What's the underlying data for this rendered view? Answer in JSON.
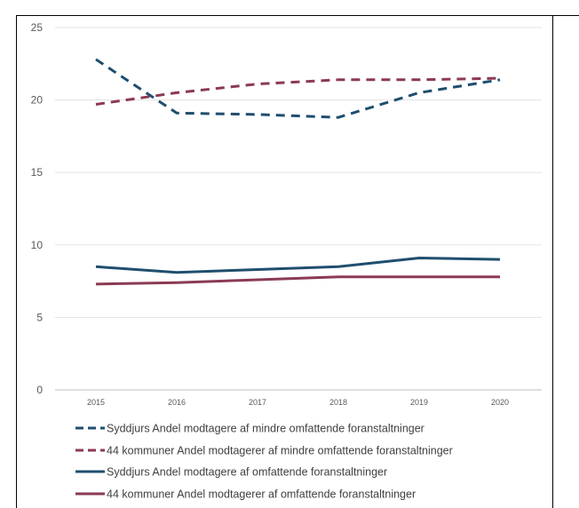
{
  "chart_data": {
    "type": "line",
    "title": "",
    "xlabel": "",
    "ylabel": "",
    "x": [
      "2015",
      "2016",
      "2017",
      "2018",
      "2019",
      "2020"
    ],
    "ylim": [
      0,
      25
    ],
    "yticks": [
      "0",
      "5",
      "10",
      "15",
      "20",
      "25"
    ],
    "grid": true,
    "legend_position": "bottom",
    "series": [
      {
        "name": "Syddjurs Andel modtagere af mindre omfattende foranstaltninger",
        "values": [
          22.8,
          19.1,
          19.0,
          18.8,
          20.5,
          21.4
        ],
        "color": "#1f4e6e",
        "dashed": true
      },
      {
        "name": "44 kommuner Andel modtagerer af mindre omfattende foranstaltninger",
        "values": [
          19.7,
          20.5,
          21.1,
          21.4,
          21.4,
          21.5
        ],
        "color": "#8b3a52",
        "dashed": true
      },
      {
        "name": "Syddjurs Andel modtagere af omfattende foranstaltninger",
        "values": [
          8.5,
          8.1,
          8.3,
          8.5,
          9.1,
          9.0
        ],
        "color": "#1f4e6e",
        "dashed": false
      },
      {
        "name": "44 kommuner Andel modtagerer af omfattende foranstaltninger",
        "values": [
          7.3,
          7.4,
          7.6,
          7.8,
          7.8,
          7.8
        ],
        "color": "#8b3a52",
        "dashed": false
      }
    ]
  }
}
